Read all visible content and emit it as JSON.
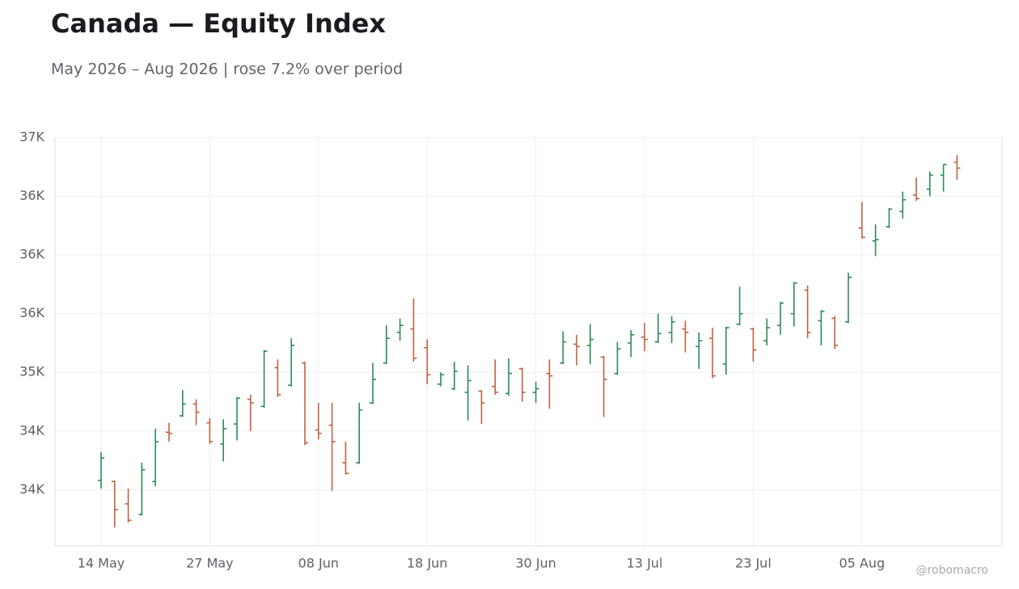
{
  "chart_data": {
    "type": "ohlc",
    "title": "Canada — Equity Index",
    "subtitle": "May 2026 – Aug 2026 | rose 7.2% over period",
    "watermark": "@robomacro",
    "x": [
      "14 May",
      null,
      null,
      null,
      null,
      null,
      null,
      null,
      "27 May",
      null,
      null,
      null,
      null,
      null,
      null,
      null,
      "08 Jun",
      null,
      null,
      null,
      null,
      null,
      null,
      null,
      "18 Jun",
      null,
      null,
      null,
      null,
      null,
      null,
      null,
      "30 Jun",
      null,
      null,
      null,
      null,
      null,
      null,
      null,
      "13 Jul",
      null,
      null,
      null,
      null,
      null,
      null,
      null,
      "23 Jul",
      null,
      null,
      null,
      null,
      null,
      null,
      null,
      "05 Aug",
      null,
      null,
      null,
      null,
      null,
      null,
      null
    ],
    "open": [
      34080,
      34070,
      33880,
      33790,
      34070,
      34490,
      34630,
      34730,
      34570,
      34390,
      34560,
      34770,
      34710,
      35040,
      34890,
      35080,
      34510,
      34550,
      34230,
      34230,
      34740,
      35080,
      35340,
      35370,
      35210,
      34900,
      34860,
      34830,
      34840,
      34880,
      34820,
      35030,
      34830,
      34990,
      35080,
      35240,
      35230,
      35130,
      34990,
      35250,
      35300,
      35260,
      35340,
      35370,
      35220,
      35290,
      35070,
      35410,
      35370,
      35270,
      35400,
      35500,
      35700,
      35440,
      35460,
      35430,
      36230,
      36120,
      36240,
      36370,
      36510,
      36560,
      36680,
      36790
    ],
    "high": [
      34320,
      34080,
      34010,
      34230,
      34520,
      34570,
      34850,
      34770,
      34610,
      34600,
      34790,
      34810,
      35190,
      35110,
      35290,
      35090,
      34740,
      34740,
      34410,
      34740,
      35080,
      35400,
      35460,
      35630,
      35280,
      35000,
      35090,
      35060,
      34850,
      35110,
      35120,
      35040,
      34920,
      35110,
      35350,
      35320,
      35410,
      35140,
      35260,
      35360,
      35420,
      35500,
      35480,
      35440,
      35340,
      35380,
      35390,
      35730,
      35380,
      35460,
      35600,
      35770,
      35740,
      35530,
      35480,
      35850,
      36450,
      36260,
      36400,
      36540,
      36660,
      36710,
      36770,
      36850
    ],
    "low": [
      34010,
      33680,
      33720,
      33780,
      34030,
      34410,
      34620,
      34550,
      34390,
      34240,
      34420,
      34500,
      34700,
      34790,
      34880,
      34380,
      34430,
      33990,
      34130,
      34220,
      34730,
      35070,
      35270,
      35090,
      34900,
      34880,
      34850,
      34590,
      34560,
      34810,
      34800,
      34750,
      34740,
      34690,
      35070,
      35060,
      35070,
      34620,
      34980,
      35130,
      35180,
      35250,
      35250,
      35170,
      35030,
      34950,
      34980,
      35400,
      35090,
      35230,
      35320,
      35390,
      35290,
      35230,
      35200,
      35420,
      36140,
      35990,
      36230,
      36310,
      36460,
      36500,
      36540,
      36640
    ],
    "close": [
      34270,
      33830,
      33740,
      34170,
      34410,
      34480,
      34730,
      34660,
      34410,
      34520,
      34780,
      34740,
      35180,
      34810,
      35230,
      34400,
      34480,
      34410,
      34140,
      34680,
      34940,
      35290,
      35400,
      35120,
      34980,
      34980,
      35010,
      34930,
      34740,
      34830,
      34990,
      34830,
      34860,
      34970,
      35260,
      35220,
      35280,
      34940,
      35200,
      35320,
      35280,
      35330,
      35430,
      35340,
      35270,
      34970,
      35380,
      35500,
      35190,
      35380,
      35590,
      35760,
      35340,
      35520,
      35230,
      35810,
      36150,
      36130,
      36390,
      36470,
      36480,
      36680,
      36770,
      36740
    ],
    "up_color": "#2e8b57",
    "down_color": "#c0623f",
    "ylim": [
      33520,
      37000
    ],
    "yticks": [
      {
        "value": 34000,
        "label": "34K"
      },
      {
        "value": 34500,
        "label": "34K"
      },
      {
        "value": 35000,
        "label": "35K"
      },
      {
        "value": 35500,
        "label": "36K"
      },
      {
        "value": 36000,
        "label": "36K"
      },
      {
        "value": 36500,
        "label": "36K"
      },
      {
        "value": 37000,
        "label": "37K"
      }
    ],
    "grid": true
  }
}
